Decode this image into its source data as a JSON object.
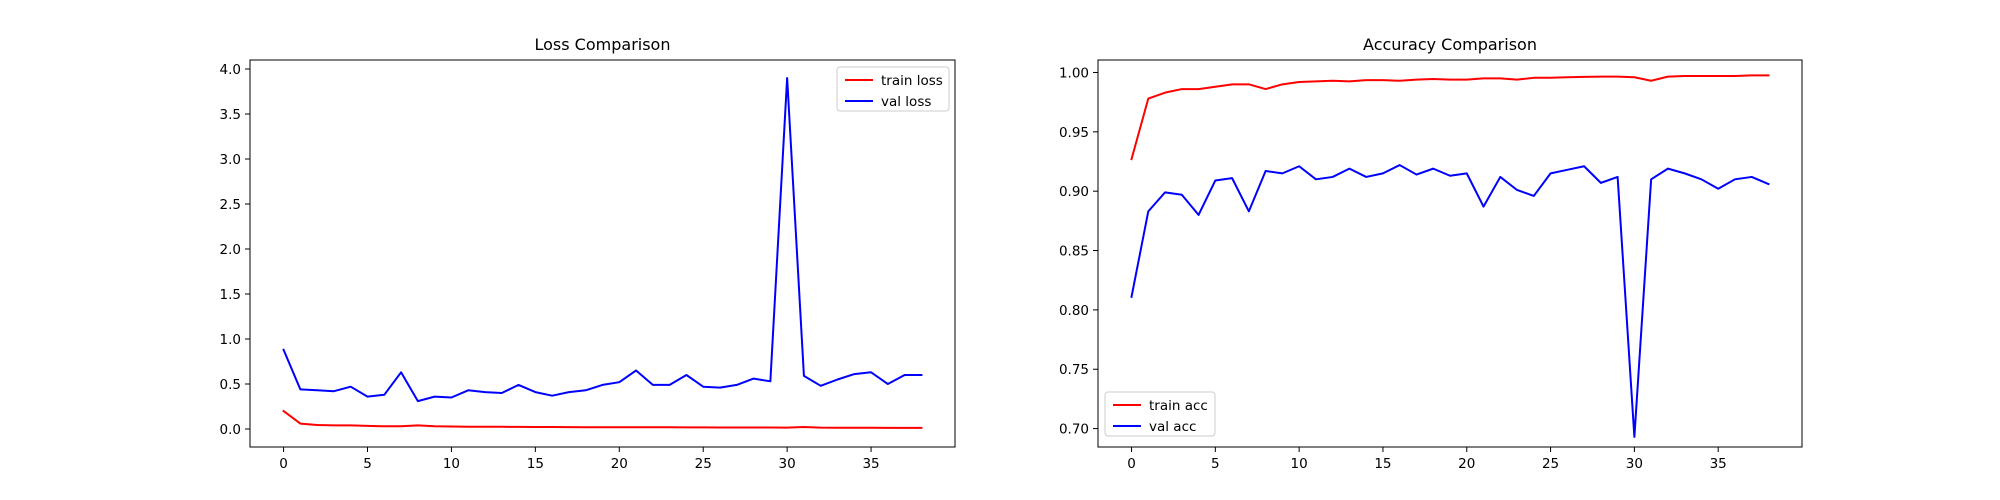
{
  "chart_data": [
    {
      "type": "line",
      "title": "Loss Comparison",
      "xlabel": "",
      "ylabel": "",
      "xlim": [
        -2,
        40
      ],
      "ylim": [
        -0.2,
        4.1
      ],
      "xticks": [
        0,
        5,
        10,
        15,
        20,
        25,
        30,
        35
      ],
      "yticks": [
        0.0,
        0.5,
        1.0,
        1.5,
        2.0,
        2.5,
        3.0,
        3.5,
        4.0
      ],
      "ytick_labels": [
        "0.0",
        "0.5",
        "1.0",
        "1.5",
        "2.0",
        "2.5",
        "3.0",
        "3.5",
        "4.0"
      ],
      "grid": false,
      "legend_position": "upper right",
      "series": [
        {
          "name": "train loss",
          "color": "#ff0000",
          "values": [
            0.2,
            0.06,
            0.045,
            0.04,
            0.04,
            0.035,
            0.03,
            0.03,
            0.04,
            0.03,
            0.028,
            0.025,
            0.025,
            0.025,
            0.023,
            0.022,
            0.022,
            0.021,
            0.02,
            0.02,
            0.02,
            0.02,
            0.019,
            0.02,
            0.018,
            0.018,
            0.017,
            0.017,
            0.016,
            0.016,
            0.015,
            0.022,
            0.015,
            0.014,
            0.014,
            0.014,
            0.013,
            0.013,
            0.013
          ]
        },
        {
          "name": "val loss",
          "color": "#0000ff",
          "values": [
            0.88,
            0.44,
            0.43,
            0.42,
            0.47,
            0.36,
            0.38,
            0.63,
            0.31,
            0.36,
            0.35,
            0.43,
            0.41,
            0.4,
            0.49,
            0.41,
            0.37,
            0.41,
            0.43,
            0.49,
            0.52,
            0.65,
            0.49,
            0.49,
            0.6,
            0.47,
            0.46,
            0.49,
            0.56,
            0.53,
            3.9,
            0.59,
            0.48,
            0.55,
            0.61,
            0.63,
            0.5,
            0.6,
            0.6
          ]
        }
      ]
    },
    {
      "type": "line",
      "title": "Accuracy Comparison",
      "xlabel": "",
      "ylabel": "",
      "xlim": [
        -2,
        40
      ],
      "ylim": [
        0.6845,
        1.0105
      ],
      "xticks": [
        0,
        5,
        10,
        15,
        20,
        25,
        30,
        35
      ],
      "yticks": [
        0.7,
        0.75,
        0.8,
        0.85,
        0.9,
        0.95,
        1.0
      ],
      "ytick_labels": [
        "0.70",
        "0.75",
        "0.80",
        "0.85",
        "0.90",
        "0.95",
        "1.00"
      ],
      "grid": false,
      "legend_position": "lower left",
      "series": [
        {
          "name": "train acc",
          "color": "#ff0000",
          "values": [
            0.927,
            0.978,
            0.983,
            0.986,
            0.986,
            0.988,
            0.99,
            0.99,
            0.986,
            0.99,
            0.992,
            0.9925,
            0.993,
            0.9925,
            0.9935,
            0.9935,
            0.993,
            0.994,
            0.9945,
            0.994,
            0.994,
            0.995,
            0.995,
            0.994,
            0.9955,
            0.9955,
            0.996,
            0.9963,
            0.9965,
            0.9965,
            0.996,
            0.993,
            0.9965,
            0.997,
            0.997,
            0.997,
            0.997,
            0.9975,
            0.9975
          ]
        },
        {
          "name": "val acc",
          "color": "#0000ff",
          "values": [
            0.811,
            0.883,
            0.899,
            0.897,
            0.88,
            0.909,
            0.911,
            0.883,
            0.917,
            0.915,
            0.921,
            0.91,
            0.912,
            0.919,
            0.912,
            0.915,
            0.922,
            0.914,
            0.919,
            0.913,
            0.915,
            0.887,
            0.912,
            0.901,
            0.896,
            0.915,
            0.918,
            0.921,
            0.907,
            0.912,
            0.693,
            0.91,
            0.919,
            0.915,
            0.91,
            0.902,
            0.91,
            0.912,
            0.906
          ]
        }
      ]
    }
  ]
}
